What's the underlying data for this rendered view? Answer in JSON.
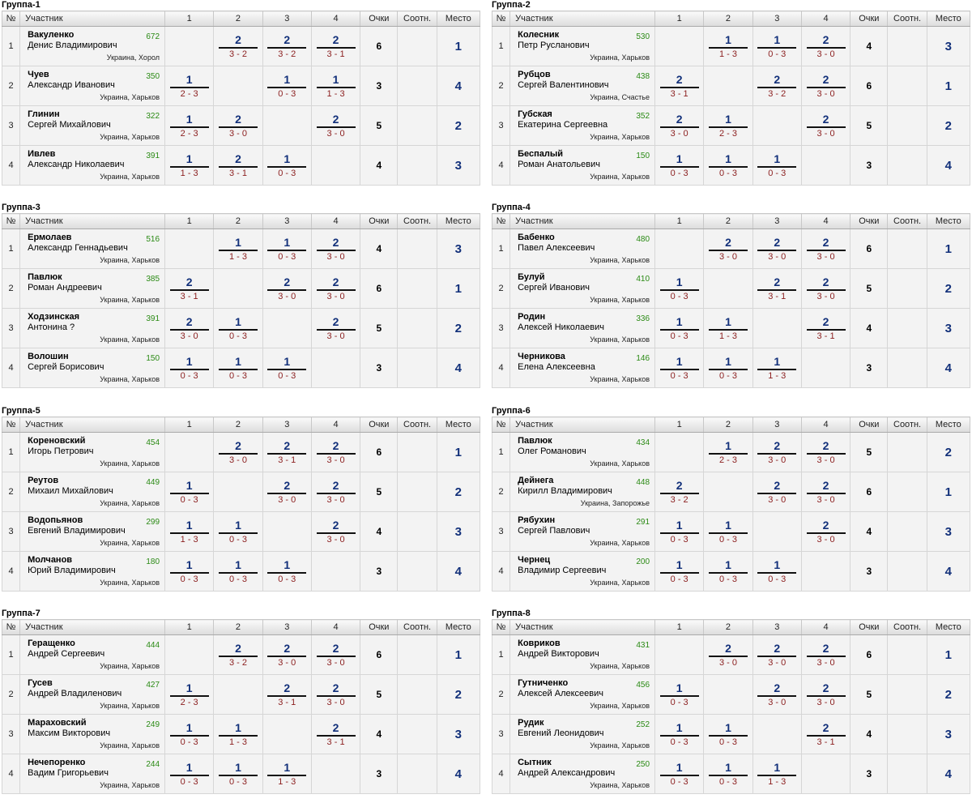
{
  "headers": {
    "num": "№",
    "participant": "Участник",
    "cols": [
      "1",
      "2",
      "3",
      "4"
    ],
    "points": "Очки",
    "ratio": "Соотн.",
    "place": "Место"
  },
  "groups": [
    {
      "title": "Группа-1",
      "rows": [
        {
          "num": "1",
          "surname": "Вакуленко",
          "name": "Денис Владимирович",
          "rating": "672",
          "location": "Украина, Хорол",
          "results": [
            null,
            {
              "p": "2",
              "s": "3 - 2"
            },
            {
              "p": "2",
              "s": "3 - 2"
            },
            {
              "p": "2",
              "s": "3 - 1"
            }
          ],
          "points": "6",
          "ratio": "",
          "place": "1"
        },
        {
          "num": "2",
          "surname": "Чуев",
          "name": "Александр Иванович",
          "rating": "350",
          "location": "Украина, Харьков",
          "results": [
            {
              "p": "1",
              "s": "2 - 3"
            },
            null,
            {
              "p": "1",
              "s": "0 - 3"
            },
            {
              "p": "1",
              "s": "1 - 3"
            }
          ],
          "points": "3",
          "ratio": "",
          "place": "4"
        },
        {
          "num": "3",
          "surname": "Глинин",
          "name": "Сергей Михайлович",
          "rating": "322",
          "location": "Украина, Харьков",
          "results": [
            {
              "p": "1",
              "s": "2 - 3"
            },
            {
              "p": "2",
              "s": "3 - 0"
            },
            null,
            {
              "p": "2",
              "s": "3 - 0"
            }
          ],
          "points": "5",
          "ratio": "",
          "place": "2"
        },
        {
          "num": "4",
          "surname": "Ивлев",
          "name": "Александр Николаевич",
          "rating": "391",
          "location": "Украина, Харьков",
          "results": [
            {
              "p": "1",
              "s": "1 - 3"
            },
            {
              "p": "2",
              "s": "3 - 1"
            },
            {
              "p": "1",
              "s": "0 - 3"
            },
            null
          ],
          "points": "4",
          "ratio": "",
          "place": "3"
        }
      ]
    },
    {
      "title": "Группа-2",
      "rows": [
        {
          "num": "1",
          "surname": "Колесник",
          "name": "Петр Русланович",
          "rating": "530",
          "location": "Украина, Харьков",
          "results": [
            null,
            {
              "p": "1",
              "s": "1 - 3"
            },
            {
              "p": "1",
              "s": "0 - 3"
            },
            {
              "p": "2",
              "s": "3 - 0"
            }
          ],
          "points": "4",
          "ratio": "",
          "place": "3"
        },
        {
          "num": "2",
          "surname": "Рубцов",
          "name": "Сергей Валентинович",
          "rating": "438",
          "location": "Украина, Счастье",
          "results": [
            {
              "p": "2",
              "s": "3 - 1"
            },
            null,
            {
              "p": "2",
              "s": "3 - 2"
            },
            {
              "p": "2",
              "s": "3 - 0"
            }
          ],
          "points": "6",
          "ratio": "",
          "place": "1"
        },
        {
          "num": "3",
          "surname": "Губская",
          "name": "Екатерина Сергеевна",
          "rating": "352",
          "location": "Украина, Харьков",
          "results": [
            {
              "p": "2",
              "s": "3 - 0"
            },
            {
              "p": "1",
              "s": "2 - 3"
            },
            null,
            {
              "p": "2",
              "s": "3 - 0"
            }
          ],
          "points": "5",
          "ratio": "",
          "place": "2"
        },
        {
          "num": "4",
          "surname": "Беспалый",
          "name": "Роман Анатольевич",
          "rating": "150",
          "location": "Украина, Харьков",
          "results": [
            {
              "p": "1",
              "s": "0 - 3"
            },
            {
              "p": "1",
              "s": "0 - 3"
            },
            {
              "p": "1",
              "s": "0 - 3"
            },
            null
          ],
          "points": "3",
          "ratio": "",
          "place": "4"
        }
      ]
    },
    {
      "title": "Группа-3",
      "rows": [
        {
          "num": "1",
          "surname": "Ермолаев",
          "name": "Александр Геннадьевич",
          "rating": "516",
          "location": "Украина, Харьков",
          "results": [
            null,
            {
              "p": "1",
              "s": "1 - 3"
            },
            {
              "p": "1",
              "s": "0 - 3"
            },
            {
              "p": "2",
              "s": "3 - 0"
            }
          ],
          "points": "4",
          "ratio": "",
          "place": "3"
        },
        {
          "num": "2",
          "surname": "Павлюк",
          "name": "Роман Андреевич",
          "rating": "385",
          "location": "Украина, Харьков",
          "results": [
            {
              "p": "2",
              "s": "3 - 1"
            },
            null,
            {
              "p": "2",
              "s": "3 - 0"
            },
            {
              "p": "2",
              "s": "3 - 0"
            }
          ],
          "points": "6",
          "ratio": "",
          "place": "1"
        },
        {
          "num": "3",
          "surname": "Ходзинская",
          "name": "Антонина ?",
          "rating": "391",
          "location": "Украина, Харьков",
          "results": [
            {
              "p": "2",
              "s": "3 - 0"
            },
            {
              "p": "1",
              "s": "0 - 3"
            },
            null,
            {
              "p": "2",
              "s": "3 - 0"
            }
          ],
          "points": "5",
          "ratio": "",
          "place": "2"
        },
        {
          "num": "4",
          "surname": "Волошин",
          "name": "Сергей Борисович",
          "rating": "150",
          "location": "Украина, Харьков",
          "results": [
            {
              "p": "1",
              "s": "0 - 3"
            },
            {
              "p": "1",
              "s": "0 - 3"
            },
            {
              "p": "1",
              "s": "0 - 3"
            },
            null
          ],
          "points": "3",
          "ratio": "",
          "place": "4"
        }
      ]
    },
    {
      "title": "Группа-4",
      "rows": [
        {
          "num": "1",
          "surname": "Бабенко",
          "name": "Павел Алексеевич",
          "rating": "480",
          "location": "Украина, Харьков",
          "results": [
            null,
            {
              "p": "2",
              "s": "3 - 0"
            },
            {
              "p": "2",
              "s": "3 - 0"
            },
            {
              "p": "2",
              "s": "3 - 0"
            }
          ],
          "points": "6",
          "ratio": "",
          "place": "1"
        },
        {
          "num": "2",
          "surname": "Булуй",
          "name": "Сергей Иванович",
          "rating": "410",
          "location": "Украина, Харьков",
          "results": [
            {
              "p": "1",
              "s": "0 - 3"
            },
            null,
            {
              "p": "2",
              "s": "3 - 1"
            },
            {
              "p": "2",
              "s": "3 - 0"
            }
          ],
          "points": "5",
          "ratio": "",
          "place": "2"
        },
        {
          "num": "3",
          "surname": "Родин",
          "name": "Алексей Николаевич",
          "rating": "336",
          "location": "Украина, Харьков",
          "results": [
            {
              "p": "1",
              "s": "0 - 3"
            },
            {
              "p": "1",
              "s": "1 - 3"
            },
            null,
            {
              "p": "2",
              "s": "3 - 1"
            }
          ],
          "points": "4",
          "ratio": "",
          "place": "3"
        },
        {
          "num": "4",
          "surname": "Черникова",
          "name": "Елена Алексеевна",
          "rating": "146",
          "location": "Украина, Харьков",
          "results": [
            {
              "p": "1",
              "s": "0 - 3"
            },
            {
              "p": "1",
              "s": "0 - 3"
            },
            {
              "p": "1",
              "s": "1 - 3"
            },
            null
          ],
          "points": "3",
          "ratio": "",
          "place": "4"
        }
      ]
    },
    {
      "title": "Группа-5",
      "rows": [
        {
          "num": "1",
          "surname": "Кореновский",
          "name": "Игорь Петрович",
          "rating": "454",
          "location": "Украина, Харьков",
          "results": [
            null,
            {
              "p": "2",
              "s": "3 - 0"
            },
            {
              "p": "2",
              "s": "3 - 1"
            },
            {
              "p": "2",
              "s": "3 - 0"
            }
          ],
          "points": "6",
          "ratio": "",
          "place": "1"
        },
        {
          "num": "2",
          "surname": "Реутов",
          "name": "Михаил Михайлович",
          "rating": "449",
          "location": "Украина, Харьков",
          "results": [
            {
              "p": "1",
              "s": "0 - 3"
            },
            null,
            {
              "p": "2",
              "s": "3 - 0"
            },
            {
              "p": "2",
              "s": "3 - 0"
            }
          ],
          "points": "5",
          "ratio": "",
          "place": "2"
        },
        {
          "num": "3",
          "surname": "Водопьянов",
          "name": "Евгений Владимирович",
          "rating": "299",
          "location": "Украина, Харьков",
          "results": [
            {
              "p": "1",
              "s": "1 - 3"
            },
            {
              "p": "1",
              "s": "0 - 3"
            },
            null,
            {
              "p": "2",
              "s": "3 - 0"
            }
          ],
          "points": "4",
          "ratio": "",
          "place": "3"
        },
        {
          "num": "4",
          "surname": "Молчанов",
          "name": "Юрий Владимирович",
          "rating": "180",
          "location": "Украина, Харьков",
          "results": [
            {
              "p": "1",
              "s": "0 - 3"
            },
            {
              "p": "1",
              "s": "0 - 3"
            },
            {
              "p": "1",
              "s": "0 - 3"
            },
            null
          ],
          "points": "3",
          "ratio": "",
          "place": "4"
        }
      ]
    },
    {
      "title": "Группа-6",
      "rows": [
        {
          "num": "1",
          "surname": "Павлюк",
          "name": "Олег Романович",
          "rating": "434",
          "location": "Украина, Харьков",
          "results": [
            null,
            {
              "p": "1",
              "s": "2 - 3"
            },
            {
              "p": "2",
              "s": "3 - 0"
            },
            {
              "p": "2",
              "s": "3 - 0"
            }
          ],
          "points": "5",
          "ratio": "",
          "place": "2"
        },
        {
          "num": "2",
          "surname": "Дейнега",
          "name": "Кирилл Владимирович",
          "rating": "448",
          "location": "Украина, Запорожье",
          "results": [
            {
              "p": "2",
              "s": "3 - 2"
            },
            null,
            {
              "p": "2",
              "s": "3 - 0"
            },
            {
              "p": "2",
              "s": "3 - 0"
            }
          ],
          "points": "6",
          "ratio": "",
          "place": "1"
        },
        {
          "num": "3",
          "surname": "Рябухин",
          "name": "Сергей Павлович",
          "rating": "291",
          "location": "Украина, Харьков",
          "results": [
            {
              "p": "1",
              "s": "0 - 3"
            },
            {
              "p": "1",
              "s": "0 - 3"
            },
            null,
            {
              "p": "2",
              "s": "3 - 0"
            }
          ],
          "points": "4",
          "ratio": "",
          "place": "3"
        },
        {
          "num": "4",
          "surname": "Чернец",
          "name": "Владимир Сергеевич",
          "rating": "200",
          "location": "Украина, Харьков",
          "results": [
            {
              "p": "1",
              "s": "0 - 3"
            },
            {
              "p": "1",
              "s": "0 - 3"
            },
            {
              "p": "1",
              "s": "0 - 3"
            },
            null
          ],
          "points": "3",
          "ratio": "",
          "place": "4"
        }
      ]
    },
    {
      "title": "Группа-7",
      "rows": [
        {
          "num": "1",
          "surname": "Геращенко",
          "name": "Андрей Сергеевич",
          "rating": "444",
          "location": "Украина, Харьков",
          "results": [
            null,
            {
              "p": "2",
              "s": "3 - 2"
            },
            {
              "p": "2",
              "s": "3 - 0"
            },
            {
              "p": "2",
              "s": "3 - 0"
            }
          ],
          "points": "6",
          "ratio": "",
          "place": "1"
        },
        {
          "num": "2",
          "surname": "Гусев",
          "name": "Андрей Владиленович",
          "rating": "427",
          "location": "Украина, Харьков",
          "results": [
            {
              "p": "1",
              "s": "2 - 3"
            },
            null,
            {
              "p": "2",
              "s": "3 - 1"
            },
            {
              "p": "2",
              "s": "3 - 0"
            }
          ],
          "points": "5",
          "ratio": "",
          "place": "2"
        },
        {
          "num": "3",
          "surname": "Мараховский",
          "name": "Максим Викторович",
          "rating": "249",
          "location": "Украина, Харьков",
          "results": [
            {
              "p": "1",
              "s": "0 - 3"
            },
            {
              "p": "1",
              "s": "1 - 3"
            },
            null,
            {
              "p": "2",
              "s": "3 - 1"
            }
          ],
          "points": "4",
          "ratio": "",
          "place": "3"
        },
        {
          "num": "4",
          "surname": "Нечепоренко",
          "name": "Вадим Григорьевич",
          "rating": "244",
          "location": "Украина, Харьков",
          "results": [
            {
              "p": "1",
              "s": "0 - 3"
            },
            {
              "p": "1",
              "s": "0 - 3"
            },
            {
              "p": "1",
              "s": "1 - 3"
            },
            null
          ],
          "points": "3",
          "ratio": "",
          "place": "4"
        }
      ]
    },
    {
      "title": "Группа-8",
      "rows": [
        {
          "num": "1",
          "surname": "Ковриков",
          "name": "Андрей Викторович",
          "rating": "431",
          "location": "Украина, Харьков",
          "results": [
            null,
            {
              "p": "2",
              "s": "3 - 0"
            },
            {
              "p": "2",
              "s": "3 - 0"
            },
            {
              "p": "2",
              "s": "3 - 0"
            }
          ],
          "points": "6",
          "ratio": "",
          "place": "1"
        },
        {
          "num": "2",
          "surname": "Гутниченко",
          "name": "Алексей Алексеевич",
          "rating": "456",
          "location": "Украина, Харьков",
          "results": [
            {
              "p": "1",
              "s": "0 - 3"
            },
            null,
            {
              "p": "2",
              "s": "3 - 0"
            },
            {
              "p": "2",
              "s": "3 - 0"
            }
          ],
          "points": "5",
          "ratio": "",
          "place": "2"
        },
        {
          "num": "3",
          "surname": "Рудик",
          "name": "Евгений Леонидович",
          "rating": "252",
          "location": "Украина, Харьков",
          "results": [
            {
              "p": "1",
              "s": "0 - 3"
            },
            {
              "p": "1",
              "s": "0 - 3"
            },
            null,
            {
              "p": "2",
              "s": "3 - 1"
            }
          ],
          "points": "4",
          "ratio": "",
          "place": "3"
        },
        {
          "num": "4",
          "surname": "Сытник",
          "name": "Андрей Александрович",
          "rating": "250",
          "location": "Украина, Харьков",
          "results": [
            {
              "p": "1",
              "s": "0 - 3"
            },
            {
              "p": "1",
              "s": "0 - 3"
            },
            {
              "p": "1",
              "s": "1 - 3"
            },
            null
          ],
          "points": "3",
          "ratio": "",
          "place": "4"
        }
      ]
    }
  ]
}
